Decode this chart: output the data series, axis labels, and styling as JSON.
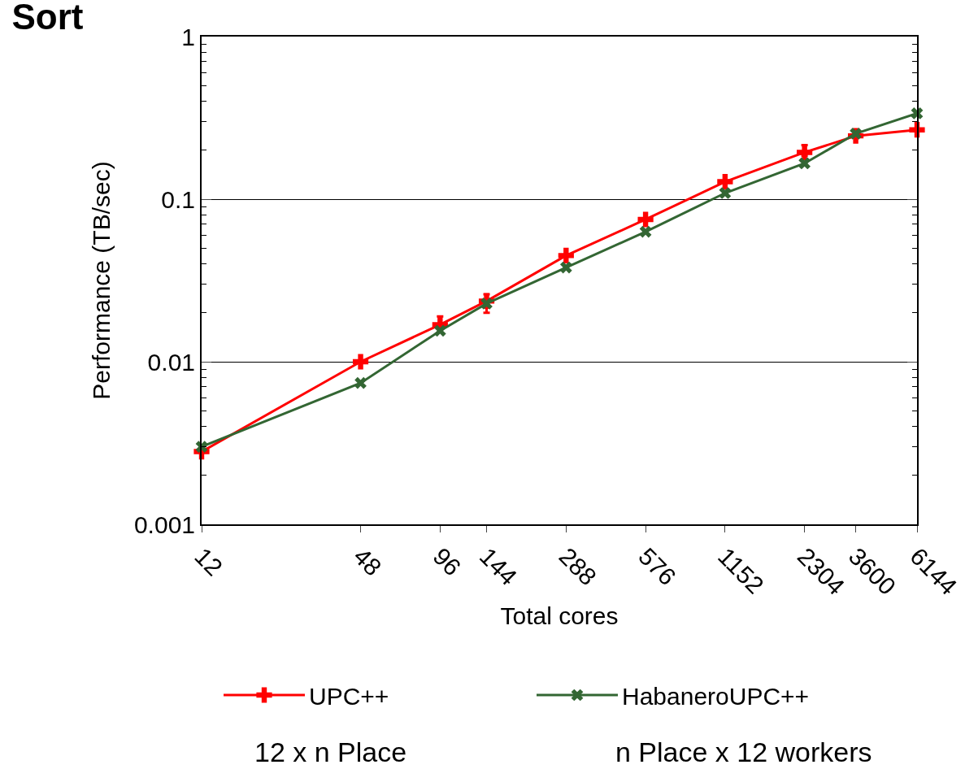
{
  "chart_data": {
    "type": "line",
    "title": "Sort",
    "xlabel": "Total cores",
    "ylabel": "Performance (TB/sec)",
    "x": [
      12,
      48,
      96,
      144,
      288,
      576,
      1152,
      2304,
      3600,
      6144
    ],
    "series": [
      {
        "name": "UPC++",
        "color": "#ff0000",
        "marker": "cross",
        "values": [
          0.0028,
          0.01,
          0.0169,
          0.0236,
          0.045,
          0.075,
          0.128,
          0.194,
          0.245,
          0.267
        ],
        "errors": [
          null,
          null,
          [
            0.0169,
            0.019
          ],
          [
            0.02,
            0.026
          ],
          null,
          null,
          null,
          [
            0.185,
            0.215
          ],
          null,
          null
        ]
      },
      {
        "name": "HabaneroUPC++",
        "color": "#336633",
        "marker": "x",
        "values": [
          0.003,
          0.0074,
          0.0155,
          0.0228,
          0.038,
          0.063,
          0.109,
          0.166,
          0.253,
          0.337
        ]
      }
    ],
    "log": "xy",
    "xlim": [
      12,
      6144
    ],
    "xticks": [
      12,
      48,
      96,
      144,
      288,
      576,
      1152,
      2304,
      3600,
      6144
    ],
    "ylim": [
      0.001,
      1
    ],
    "yticks": [
      0.001,
      0.01,
      0.1,
      1
    ],
    "grid": "y",
    "legend": "bottom",
    "line_style": "solid",
    "annotations": [
      {
        "text": "12 x n Place"
      },
      {
        "text": "n Place x 12 workers"
      }
    ]
  }
}
